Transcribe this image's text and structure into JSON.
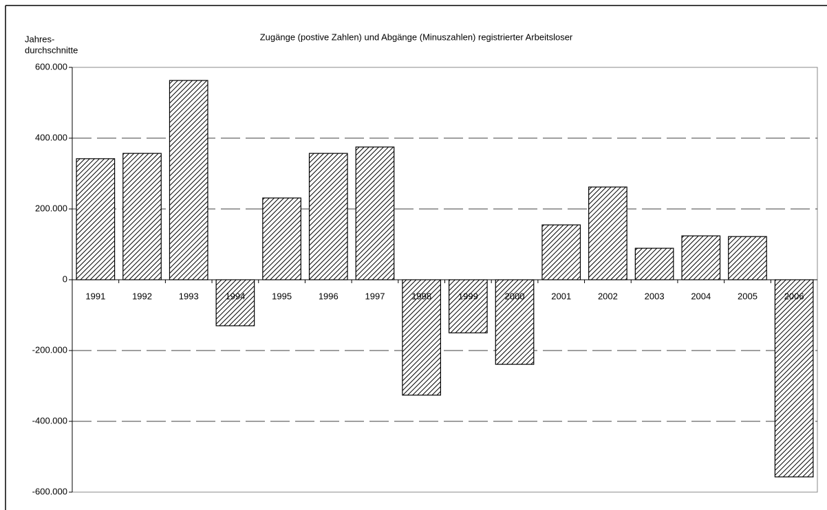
{
  "chart_data": {
    "type": "bar",
    "title": "Zugänge (postive Zahlen) und Abgänge (Minuszahlen) registrierter Arbeitsloser",
    "y_label": [
      "Jahres-",
      "durchschnitte"
    ],
    "categories": [
      "1991",
      "1992",
      "1993",
      "1994",
      "1995",
      "1996",
      "1997",
      "1998",
      "1999",
      "2000",
      "2001",
      "2002",
      "2003",
      "2004",
      "2005",
      "2006"
    ],
    "values": [
      342000,
      357000,
      563000,
      -130000,
      231000,
      357000,
      375000,
      -326000,
      -150000,
      -239000,
      155000,
      262000,
      89000,
      124000,
      122000,
      -557000
    ],
    "color": "#000000",
    "ylim": [
      -600000,
      600000
    ],
    "yticks": [
      {
        "value": -600000,
        "label": "-600.000"
      },
      {
        "value": -400000,
        "label": "-400.000"
      },
      {
        "value": -200000,
        "label": "-200.000"
      },
      0,
      {
        "value": 200000,
        "label": "200.000"
      },
      {
        "value": 400000,
        "label": "400.000"
      },
      {
        "value": 600000,
        "label": "600.000"
      }
    ],
    "grid": true
  }
}
